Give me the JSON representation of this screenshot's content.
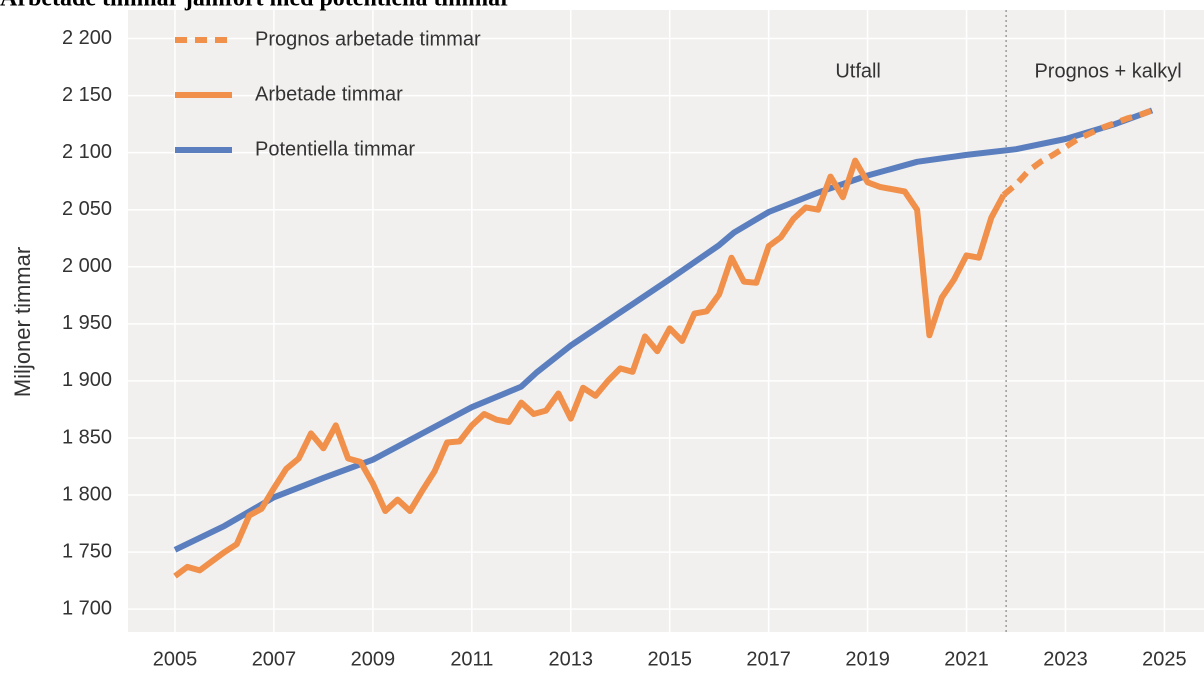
{
  "chart_data": {
    "type": "line",
    "title": "Arbetade timmar jämfört med potentiella timmar",
    "y_label": "Miljoner timmar",
    "annotations": [
      "Utfall",
      "Prognos + kalkyl"
    ],
    "divider": 2021.8,
    "xlim": [
      2004.05,
      2025.8
    ],
    "xticks": [
      2005,
      2007,
      2009,
      2011,
      2013,
      2015,
      2017,
      2019,
      2021,
      2023,
      2025
    ],
    "ylim": [
      1680,
      2225
    ],
    "yticks": [
      {
        "value": 1700,
        "label": "1 700"
      },
      {
        "value": 1750,
        "label": "1 750"
      },
      {
        "value": 1800,
        "label": "1 800"
      },
      {
        "value": 1850,
        "label": "1 850"
      },
      {
        "value": 1900,
        "label": "1 900"
      },
      {
        "value": 1950,
        "label": "1 950"
      },
      {
        "value": 2000,
        "label": "2 000"
      },
      {
        "value": 2050,
        "label": "2 050"
      },
      {
        "value": 2100,
        "label": "2 100"
      },
      {
        "value": 2150,
        "label": "2 150"
      },
      {
        "value": 2200,
        "label": "2 200"
      }
    ],
    "grid": true,
    "legend": "top-left",
    "series": [
      {
        "name": "Prognos arbetade timmar",
        "color": "#f0904a",
        "dashed": true,
        "x": [
          2021.75,
          2022,
          2022.25,
          2022.5,
          2022.75,
          2023,
          2023.25,
          2023.5,
          2023.75,
          2024,
          2024.25,
          2024.5,
          2024.75
        ],
        "values": [
          2063,
          2072,
          2084,
          2092,
          2098,
          2105,
          2112,
          2117,
          2122,
          2126,
          2130,
          2133,
          2137
        ]
      },
      {
        "name": "Arbetade timmar",
        "color": "#f0904a",
        "dashed": false,
        "x": [
          2005,
          2005.25,
          2005.5,
          2005.75,
          2006,
          2006.25,
          2006.5,
          2006.75,
          2007,
          2007.25,
          2007.5,
          2007.75,
          2008,
          2008.25,
          2008.5,
          2008.75,
          2009,
          2009.25,
          2009.5,
          2009.75,
          2010,
          2010.25,
          2010.5,
          2010.75,
          2011,
          2011.25,
          2011.5,
          2011.75,
          2012,
          2012.25,
          2012.5,
          2012.75,
          2013,
          2013.25,
          2013.5,
          2013.75,
          2014,
          2014.25,
          2014.5,
          2014.75,
          2015,
          2015.25,
          2015.5,
          2015.75,
          2016,
          2016.25,
          2016.5,
          2016.75,
          2017,
          2017.25,
          2017.5,
          2017.75,
          2018,
          2018.25,
          2018.5,
          2018.75,
          2019,
          2019.25,
          2019.5,
          2019.75,
          2020,
          2020.25,
          2020.5,
          2020.75,
          2021,
          2021.25,
          2021.5,
          2021.75
        ],
        "values": [
          1729,
          1737,
          1734,
          1742,
          1750,
          1757,
          1782,
          1788,
          1806,
          1823,
          1832,
          1854,
          1841,
          1861,
          1832,
          1829,
          1810,
          1786,
          1796,
          1786,
          1804,
          1821,
          1846,
          1847,
          1861,
          1871,
          1866,
          1864,
          1881,
          1871,
          1874,
          1889,
          1867,
          1894,
          1887,
          1900,
          1911,
          1908,
          1939,
          1926,
          1946,
          1935,
          1959,
          1961,
          1976,
          2008,
          1987,
          1986,
          2018,
          2026,
          2042,
          2052,
          2050,
          2079,
          2061,
          2093,
          2074,
          2070,
          2068,
          2066,
          2050,
          1940,
          1973,
          1989,
          2010,
          2008,
          2043,
          2063
        ]
      },
      {
        "name": "Potentiella timmar",
        "color": "#5b7fbe",
        "dashed": false,
        "x": [
          2005,
          2006,
          2007,
          2008,
          2009,
          2010,
          2011,
          2012,
          2012.3,
          2013,
          2014,
          2015,
          2016,
          2016.3,
          2017,
          2018,
          2019,
          2020,
          2021,
          2022,
          2023,
          2024,
          2024.75
        ],
        "values": [
          1752,
          1773,
          1798,
          1815,
          1831,
          1854,
          1877,
          1895,
          1907,
          1931,
          1960,
          1989,
          2019,
          2030,
          2048,
          2065,
          2080,
          2092,
          2098,
          2103,
          2112,
          2125,
          2137
        ]
      }
    ]
  }
}
